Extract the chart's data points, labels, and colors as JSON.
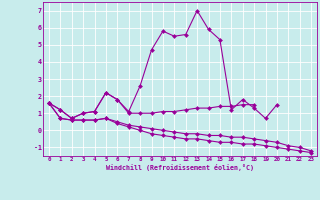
{
  "xlabel": "Windchill (Refroidissement éolien,°C)",
  "bg_color": "#c8ecec",
  "line_color": "#990099",
  "grid_color": "#ffffff",
  "xlim": [
    -0.5,
    23.5
  ],
  "ylim": [
    -1.5,
    7.5
  ],
  "yticks": [
    -1,
    0,
    1,
    2,
    3,
    4,
    5,
    6,
    7
  ],
  "xticks": [
    0,
    1,
    2,
    3,
    4,
    5,
    6,
    7,
    8,
    9,
    10,
    11,
    12,
    13,
    14,
    15,
    16,
    17,
    18,
    19,
    20,
    21,
    22,
    23
  ],
  "series": [
    [
      1.6,
      1.2,
      0.7,
      1.0,
      1.1,
      2.2,
      1.8,
      1.1,
      2.6,
      4.7,
      5.8,
      5.5,
      5.6,
      7.0,
      5.9,
      5.3,
      1.2,
      1.8,
      1.3,
      0.7,
      1.5,
      null,
      null,
      null
    ],
    [
      1.6,
      1.2,
      0.7,
      1.0,
      1.1,
      2.2,
      1.8,
      1.0,
      1.0,
      1.0,
      1.1,
      1.1,
      1.2,
      1.3,
      1.3,
      1.4,
      1.4,
      1.5,
      1.5,
      null,
      null,
      null,
      null,
      null
    ],
    [
      1.6,
      0.7,
      0.6,
      0.6,
      0.6,
      0.7,
      0.5,
      0.3,
      0.2,
      0.1,
      0.0,
      -0.1,
      -0.2,
      -0.2,
      -0.3,
      -0.3,
      -0.4,
      -0.4,
      -0.5,
      -0.6,
      -0.7,
      -0.9,
      -1.0,
      -1.2
    ],
    [
      1.6,
      0.7,
      0.6,
      0.6,
      0.6,
      0.7,
      0.4,
      0.2,
      0.0,
      -0.2,
      -0.3,
      -0.4,
      -0.5,
      -0.5,
      -0.6,
      -0.7,
      -0.7,
      -0.8,
      -0.8,
      -0.9,
      -1.0,
      -1.1,
      -1.2,
      -1.3
    ]
  ]
}
